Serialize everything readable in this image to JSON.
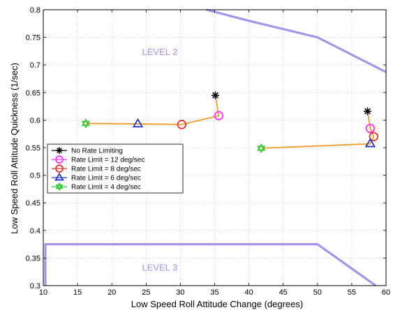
{
  "chart_data": {
    "type": "line",
    "xlabel": "Low Speed Roll Attitude Change (degrees)",
    "ylabel": "Low Speed Roll Attitude Quickness (1/sec)",
    "xlim": [
      10,
      60
    ],
    "ylim": [
      0.3,
      0.8
    ],
    "xticks": [
      "10",
      "15",
      "20",
      "25",
      "30",
      "35",
      "40",
      "45",
      "50",
      "55",
      "60"
    ],
    "yticks": [
      "0.3",
      "0.35",
      "0.4",
      "0.45",
      "0.5",
      "0.55",
      "0.6",
      "0.65",
      "0.7",
      "0.75",
      "0.8"
    ],
    "grid": true,
    "region_labels": [
      {
        "text": "LEVEL 2",
        "x": 27,
        "y": 0.718
      },
      {
        "text": "LEVEL 3",
        "x": 27,
        "y": 0.327
      }
    ],
    "boundaries": [
      {
        "x": [
          33.8,
          40,
          50,
          60
        ],
        "y": [
          0.8,
          0.78,
          0.75,
          0.687
        ]
      },
      {
        "x": [
          10.3,
          10.3,
          50,
          58.5
        ],
        "y": [
          0.3,
          0.375,
          0.375,
          0.3
        ]
      }
    ],
    "legend": {
      "placement": "center-left",
      "entries": [
        {
          "label": "No Rate Limiting",
          "marker": "asterisk",
          "color": "#000000"
        },
        {
          "label": "Rate Limit = 12 deg/sec",
          "marker": "circle",
          "color": "#ff33ff"
        },
        {
          "label": "Rate Limit = 8 deg/sec",
          "marker": "circle",
          "color": "#e6332a"
        },
        {
          "label": "Rate Limit = 6 deg/sec",
          "marker": "triangle",
          "color": "#2233cc"
        },
        {
          "label": "Rate Limit = 4 deg/sec",
          "marker": "hexagram",
          "color": "#33cc33"
        }
      ]
    },
    "series": [
      {
        "points": [
          {
            "x": 35.1,
            "y": 0.645,
            "marker": "asterisk"
          },
          {
            "x": 35.6,
            "y": 0.608,
            "marker": "circle-12"
          },
          {
            "x": 30.2,
            "y": 0.592,
            "marker": "circle-8"
          },
          {
            "x": 23.8,
            "y": 0.593,
            "marker": "triangle"
          },
          {
            "x": 16.2,
            "y": 0.594,
            "marker": "hexagram"
          }
        ]
      },
      {
        "points": [
          {
            "x": 57.3,
            "y": 0.616,
            "marker": "asterisk"
          },
          {
            "x": 57.7,
            "y": 0.585,
            "marker": "circle-12"
          },
          {
            "x": 58.2,
            "y": 0.57,
            "marker": "circle-8"
          },
          {
            "x": 57.7,
            "y": 0.557,
            "marker": "triangle"
          },
          {
            "x": 41.8,
            "y": 0.549,
            "marker": "hexagram"
          }
        ]
      }
    ],
    "colors": {
      "boundary": "#a593ea",
      "connector": "#f39a2a",
      "region_text": "#a593ea",
      "grid": "#c8c8c8"
    }
  }
}
